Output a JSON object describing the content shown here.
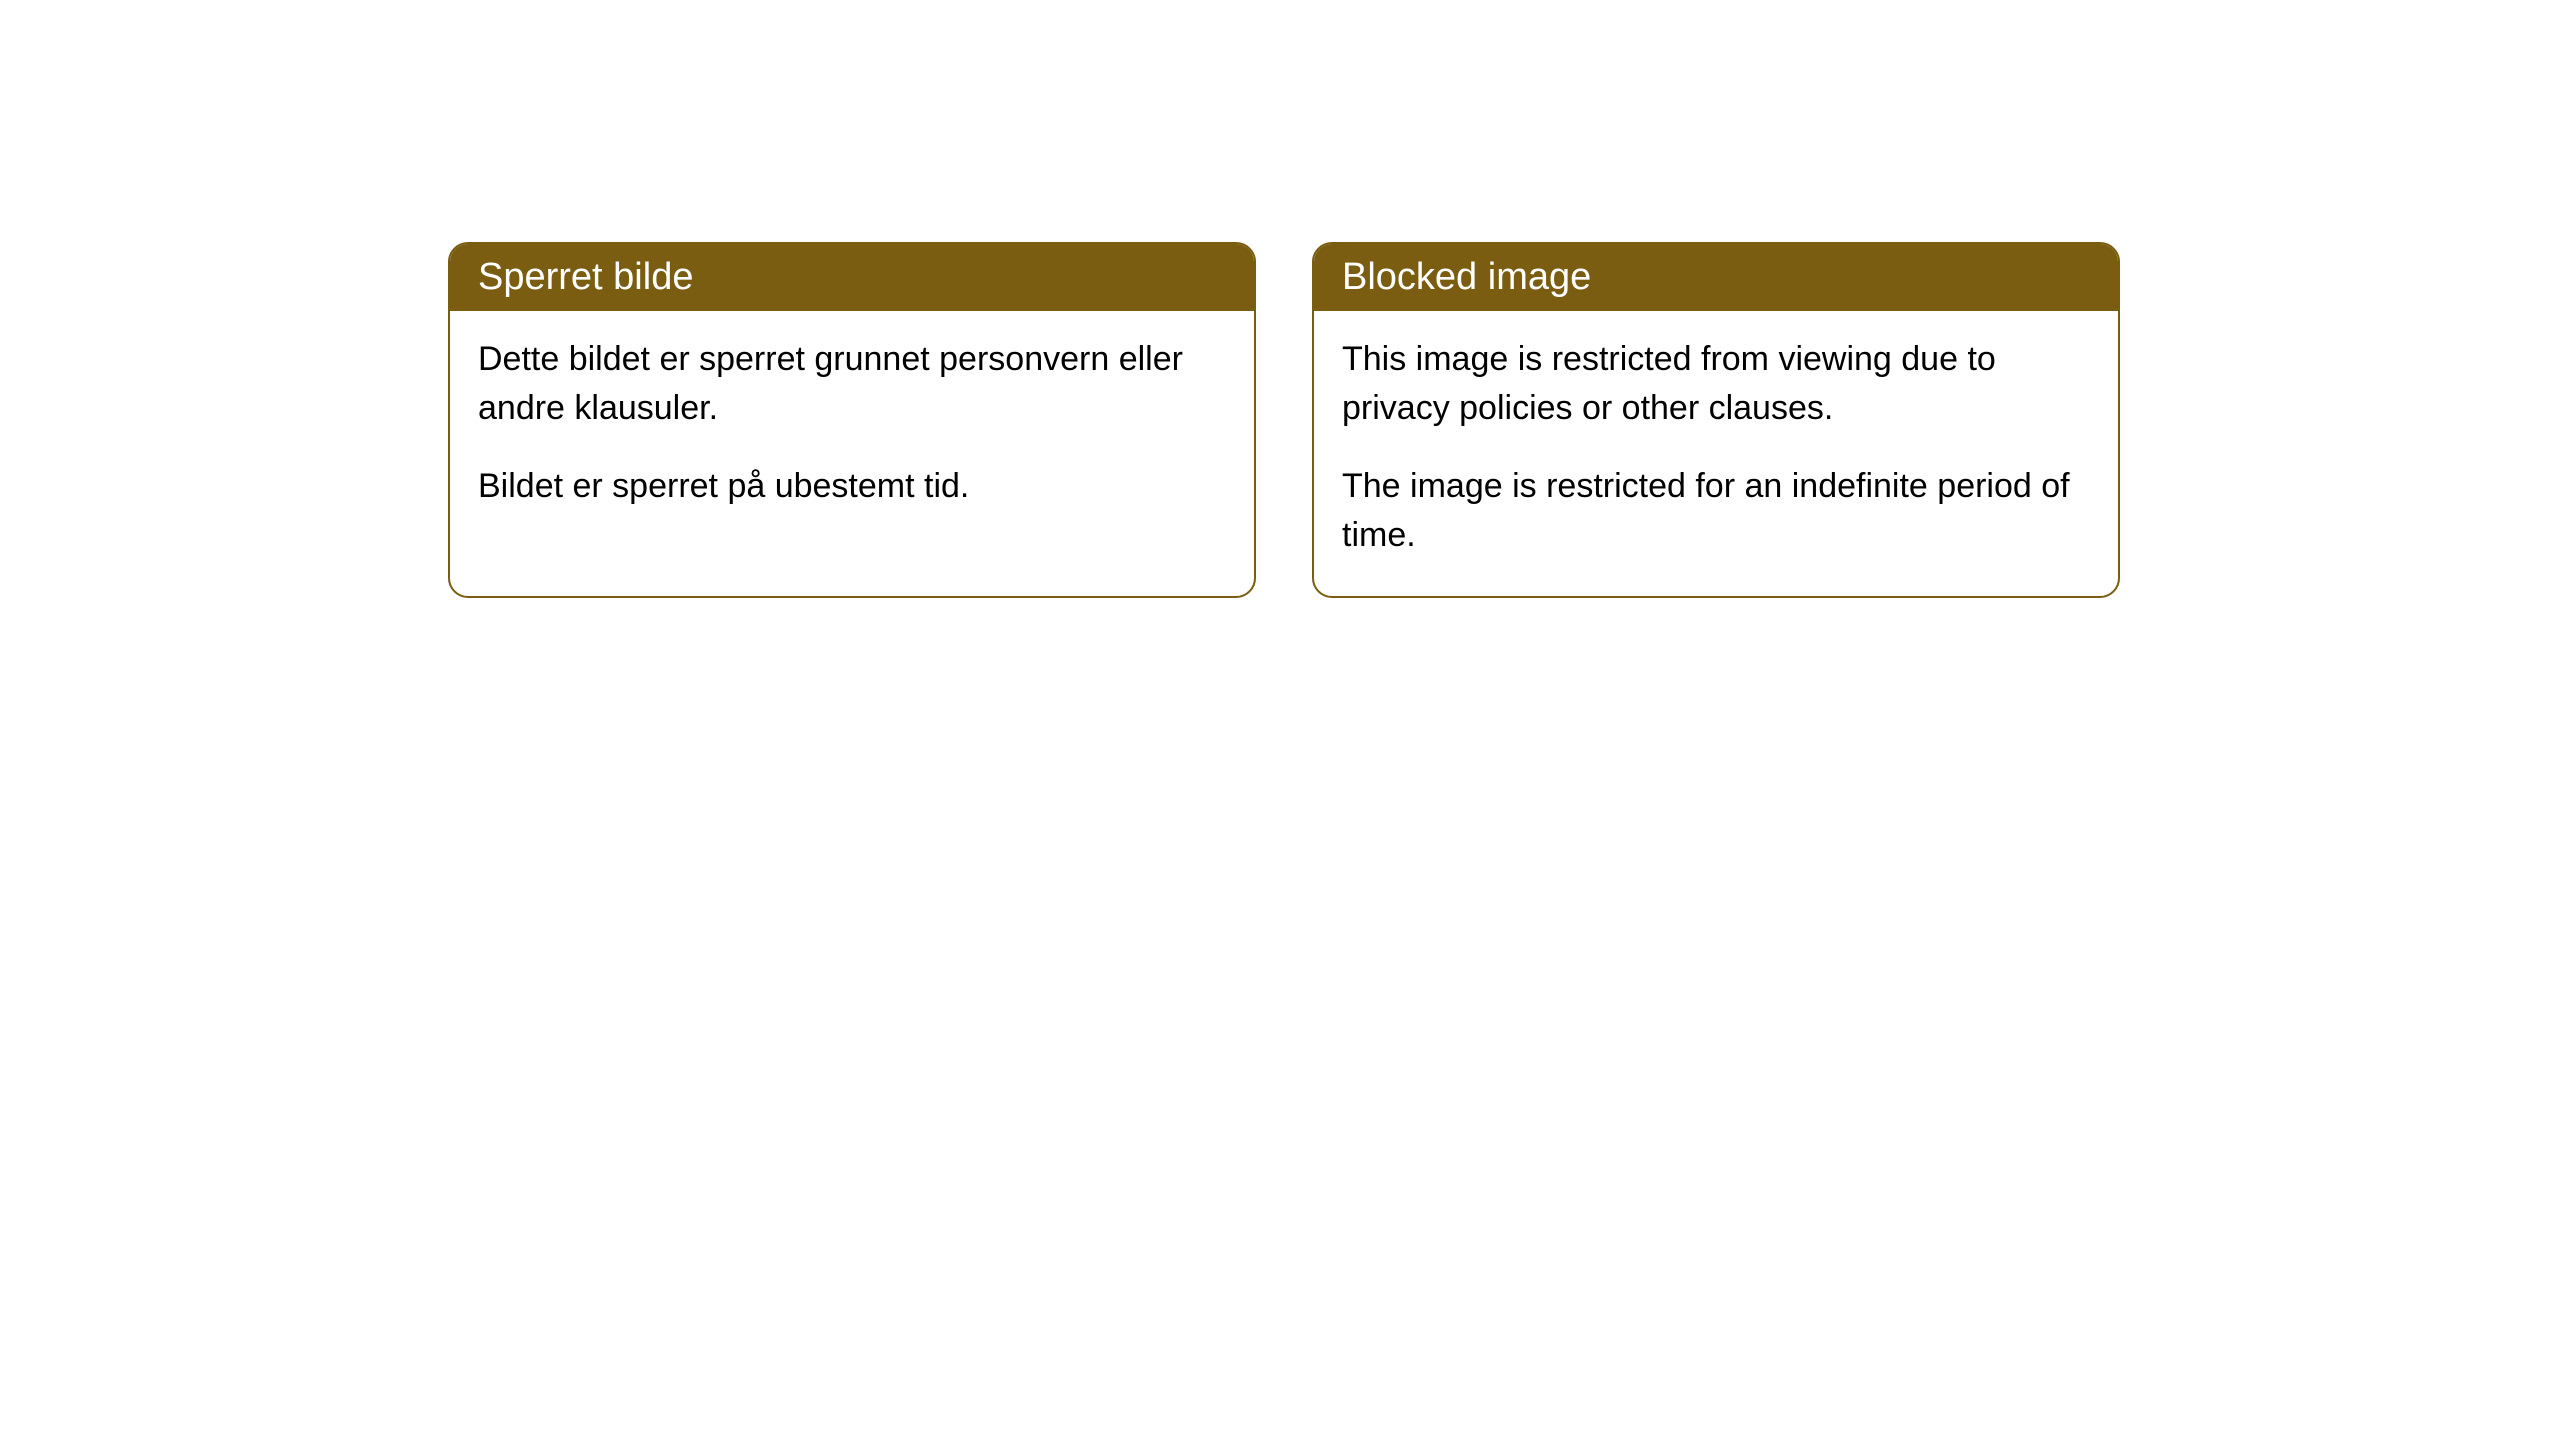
{
  "cards": [
    {
      "title": "Sperret bilde",
      "paragraph1": "Dette bildet er sperret grunnet personvern eller andre klausuler.",
      "paragraph2": "Bildet er sperret på ubestemt tid."
    },
    {
      "title": "Blocked image",
      "paragraph1": "This image is restricted from viewing due to privacy policies or other clauses.",
      "paragraph2": "The image is restricted for an indefinite period of time."
    }
  ],
  "style": {
    "header_background": "#7a5d10",
    "header_text_color": "#ffffff",
    "border_color": "#7a5d10",
    "body_background": "#ffffff",
    "body_text_color": "#000000",
    "border_radius": 20,
    "header_fontsize": 38,
    "body_fontsize": 34
  }
}
